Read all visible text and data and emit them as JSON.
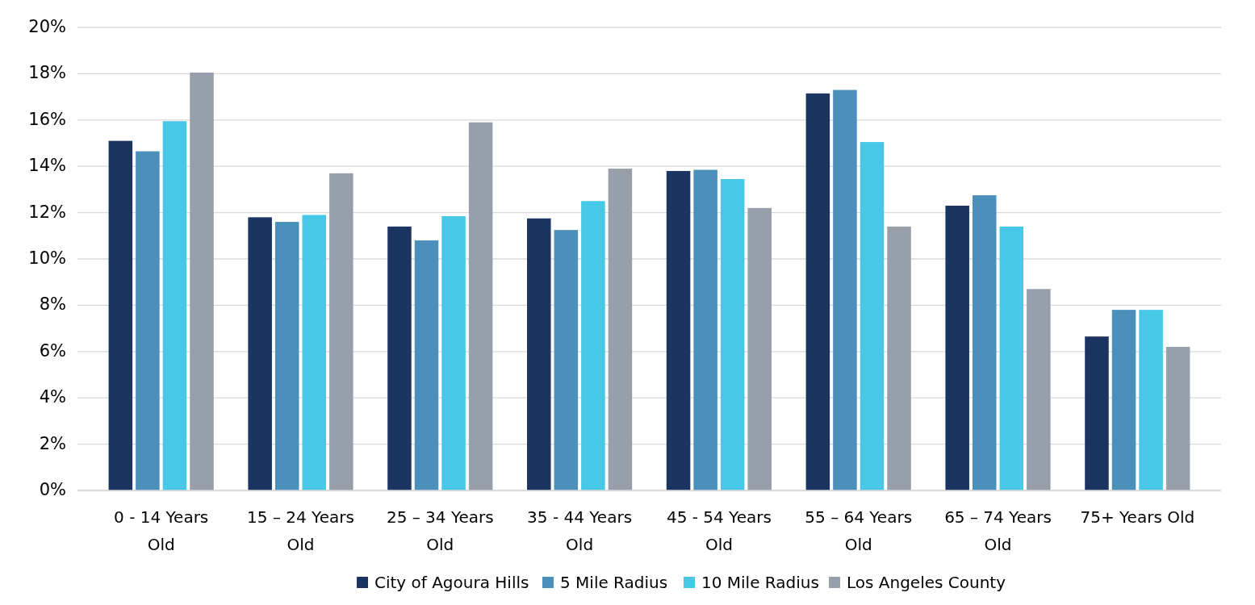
{
  "chart_data": {
    "type": "bar",
    "categories": [
      "0 - 14 Years Old",
      "15 – 24 Years Old",
      "25 – 34 Years Old",
      "35 - 44 Years Old",
      "45 - 54 Years Old",
      "55 – 64 Years Old",
      "65 – 74 Years Old",
      "75+ Years Old"
    ],
    "series": [
      {
        "name": "City of Agoura Hills",
        "color": "#1c3461",
        "values": [
          15.1,
          11.8,
          11.4,
          11.75,
          13.8,
          17.15,
          12.3,
          6.65
        ]
      },
      {
        "name": "5 Mile Radius",
        "color": "#4a90bb",
        "values": [
          14.65,
          11.6,
          10.8,
          11.25,
          13.85,
          17.3,
          12.75,
          7.8
        ]
      },
      {
        "name": "10 Mile Radius",
        "color": "#47c8e6",
        "values": [
          15.95,
          11.9,
          11.85,
          12.5,
          13.45,
          15.05,
          11.4,
          7.8
        ]
      },
      {
        "name": "Los Angeles County",
        "color": "#97a0aa",
        "values": [
          18.05,
          13.7,
          15.9,
          13.9,
          12.2,
          11.4,
          8.7,
          6.2
        ]
      }
    ],
    "ylim": [
      0,
      20
    ],
    "yticks": [
      {
        "value": 0,
        "label": "0%"
      },
      {
        "value": 2,
        "label": "2%"
      },
      {
        "value": 4,
        "label": "4%"
      },
      {
        "value": 6,
        "label": "6%"
      },
      {
        "value": 8,
        "label": "8%"
      },
      {
        "value": 10,
        "label": "10%"
      },
      {
        "value": 12,
        "label": "12%"
      },
      {
        "value": 14,
        "label": "14%"
      },
      {
        "value": 16,
        "label": "16%"
      },
      {
        "value": 18,
        "label": "18%"
      },
      {
        "value": 20,
        "label": "20%"
      }
    ],
    "grid": "y",
    "legend": "bottom"
  }
}
